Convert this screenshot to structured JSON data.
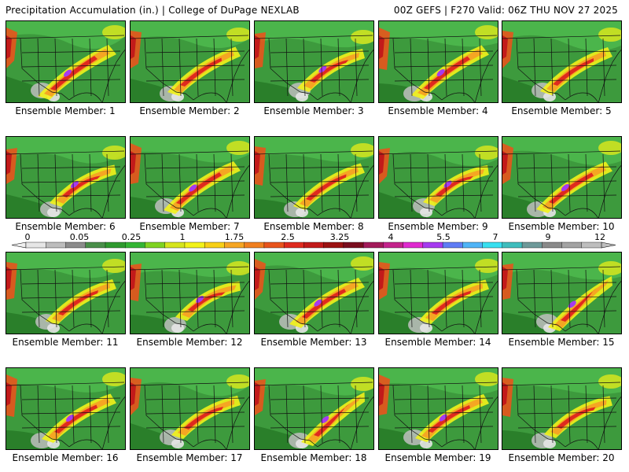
{
  "header": {
    "title": "Precipitation Accumulation (in.) | College of DuPage NEXLAB",
    "run_info": "00Z GEFS | F270 Valid: 06Z THU NOV 27 2025"
  },
  "panels": [
    {
      "label": "Ensemble Member: 1"
    },
    {
      "label": "Ensemble Member: 2"
    },
    {
      "label": "Ensemble Member: 3"
    },
    {
      "label": "Ensemble Member: 4"
    },
    {
      "label": "Ensemble Member: 5"
    },
    {
      "label": "Ensemble Member: 6"
    },
    {
      "label": "Ensemble Member: 7"
    },
    {
      "label": "Ensemble Member: 8"
    },
    {
      "label": "Ensemble Member: 9"
    },
    {
      "label": "Ensemble Member: 10"
    },
    {
      "label": "Ensemble Member: 11"
    },
    {
      "label": "Ensemble Member: 12"
    },
    {
      "label": "Ensemble Member: 13"
    },
    {
      "label": "Ensemble Member: 14"
    },
    {
      "label": "Ensemble Member: 15"
    },
    {
      "label": "Ensemble Member: 16"
    },
    {
      "label": "Ensemble Member: 17"
    },
    {
      "label": "Ensemble Member: 18"
    },
    {
      "label": "Ensemble Member: 19"
    },
    {
      "label": "Ensemble Member: 20"
    }
  ],
  "colorbar": {
    "tick_labels": [
      "0",
      "0.05",
      "0.25",
      "1",
      "1.75",
      "2.5",
      "3.25",
      "4",
      "5.5",
      "7",
      "9",
      "12"
    ],
    "colors": [
      "#e6e6e6",
      "#bdbdbd",
      "#8c8c8c",
      "#4a8f4a",
      "#2f9a2f",
      "#34b534",
      "#7fd321",
      "#d6e51d",
      "#f2f21a",
      "#f7d017",
      "#f5a623",
      "#f07f1f",
      "#e8541c",
      "#df2a1e",
      "#c21a1a",
      "#9c1212",
      "#7a0d1e",
      "#a31a5a",
      "#c4238c",
      "#e02ad0",
      "#a63af0",
      "#5f7cf5",
      "#4fb4f7",
      "#38e0f0",
      "#3fbdbd",
      "#6e9a9a",
      "#8a8a8a",
      "#a3a3a3",
      "#bebebe"
    ]
  }
}
